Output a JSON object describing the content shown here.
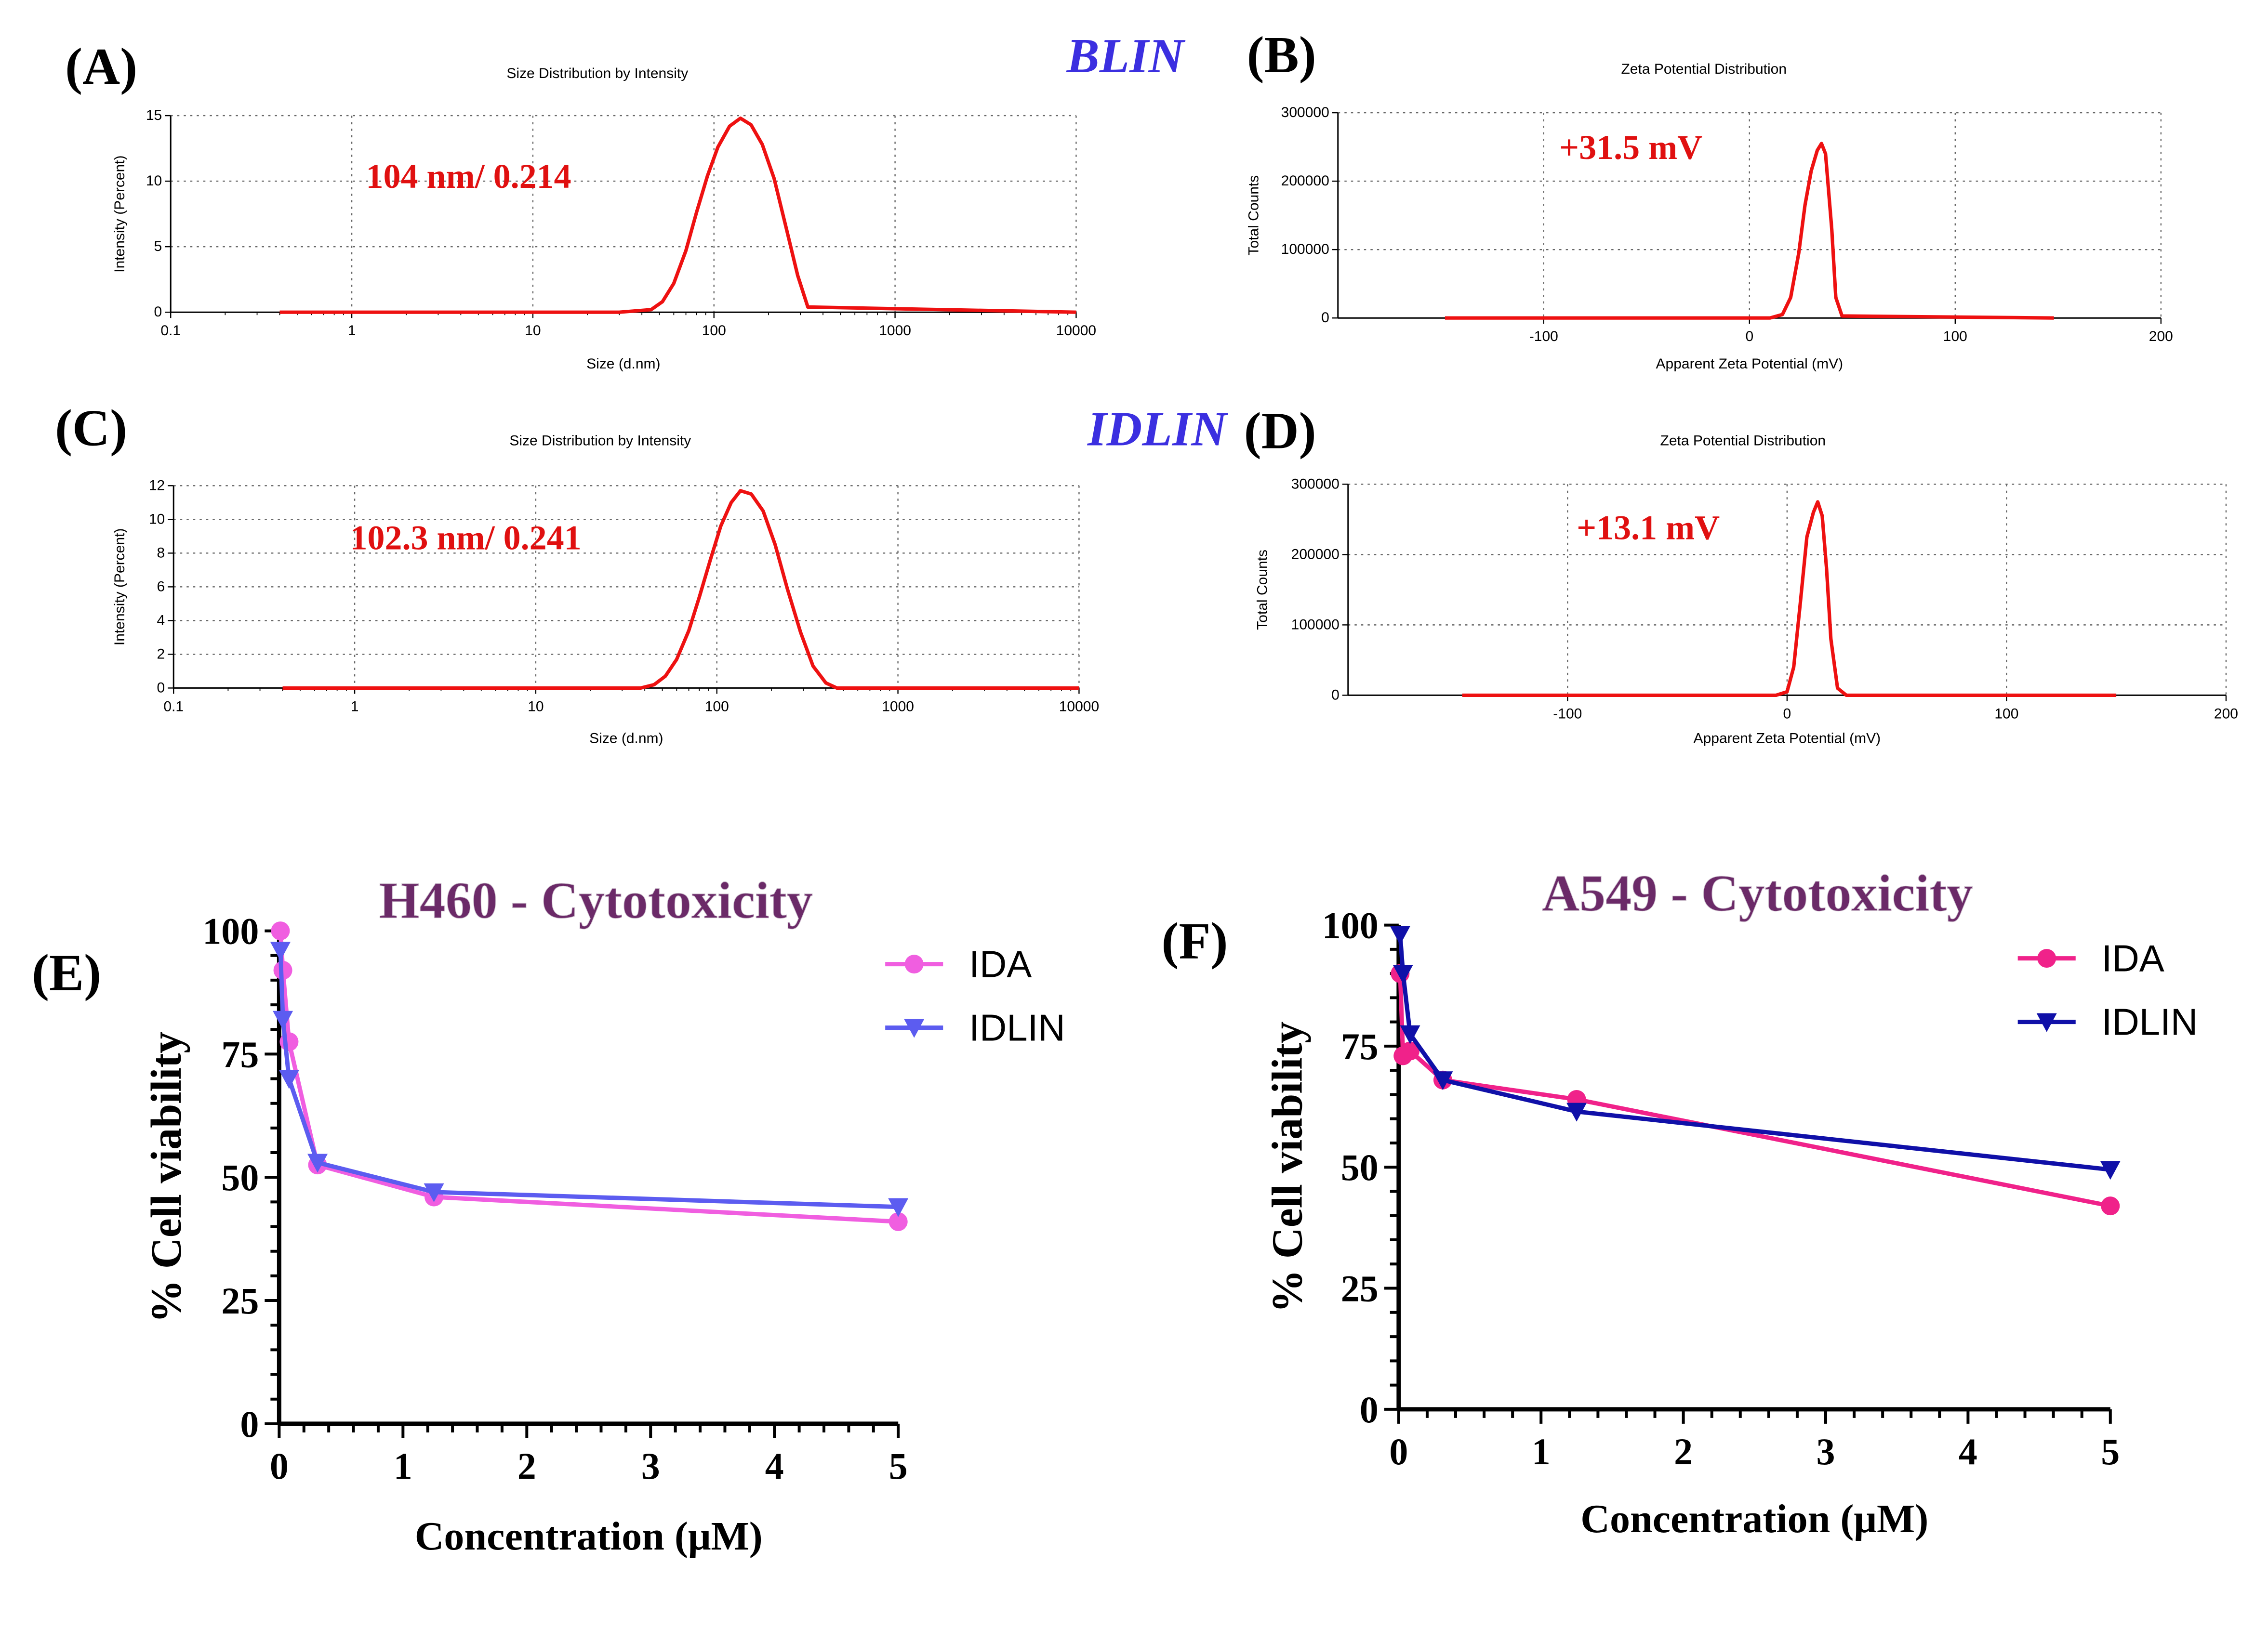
{
  "figure": {
    "group_labels": {
      "top": "BLIN",
      "middle": "IDLIN"
    },
    "colors": {
      "dls_line": "#ee1111",
      "annotation": "#e01010",
      "group_label": "#3b2fe0",
      "title_e_f": "#6b2a68"
    }
  },
  "chart_data": [
    {
      "panel": "(A)",
      "type": "line",
      "title": "Size Distribution by Intensity",
      "xlabel": "Size (d.nm)",
      "ylabel": "Intensity (Percent)",
      "x_scale": "log",
      "xlim": [
        0.1,
        10000
      ],
      "ylim": [
        0,
        15
      ],
      "x_ticks": [
        "0.1",
        "1",
        "10",
        "100",
        "1000",
        "10000"
      ],
      "y_ticks": [
        "0",
        "5",
        "10",
        "15"
      ],
      "annotation": "104 nm/ 0.214",
      "grid": true,
      "series": [
        {
          "x": [
            0.4,
            30,
            45,
            52,
            60,
            70,
            80,
            92,
            105,
            122,
            140,
            160,
            185,
            215,
            250,
            290,
            330,
            10000
          ],
          "values": [
            0,
            0,
            0.2,
            0.8,
            2.2,
            4.7,
            7.6,
            10.4,
            12.6,
            14.2,
            14.8,
            14.3,
            12.8,
            10.2,
            6.5,
            2.8,
            0.4,
            0
          ]
        }
      ]
    },
    {
      "panel": "(B)",
      "type": "line",
      "title": "Zeta Potential Distribution",
      "xlabel": "Apparent Zeta Potential (mV)",
      "ylabel": "Total Counts",
      "xlim": [
        -200,
        200
      ],
      "ylim": [
        0,
        300000
      ],
      "x_ticks": [
        "-100",
        "0",
        "100",
        "200"
      ],
      "y_ticks": [
        "0",
        "100000",
        "200000",
        "300000"
      ],
      "annotation": "+31.5 mV",
      "grid": true,
      "series": [
        {
          "x": [
            -148,
            10,
            16,
            20,
            24,
            27,
            30,
            33,
            35,
            37,
            40,
            42,
            45,
            148
          ],
          "values": [
            0,
            0,
            5000,
            30000,
            95000,
            165000,
            215000,
            245000,
            255000,
            240000,
            130000,
            30000,
            3000,
            0
          ]
        }
      ]
    },
    {
      "panel": "(C)",
      "type": "line",
      "title": "Size Distribution by Intensity",
      "xlabel": "Size (d.nm)",
      "ylabel": "Intensity (Percent)",
      "x_scale": "log",
      "xlim": [
        0.1,
        10000
      ],
      "ylim": [
        0,
        12
      ],
      "x_ticks": [
        "0.1",
        "1",
        "10",
        "100",
        "1000",
        "10000"
      ],
      "y_ticks": [
        "0",
        "2",
        "4",
        "6",
        "8",
        "10",
        "12"
      ],
      "annotation": "102.3 nm/ 0.241",
      "grid": true,
      "series": [
        {
          "x": [
            0.4,
            38,
            45,
            52,
            60,
            70,
            80,
            92,
            105,
            120,
            135,
            155,
            180,
            210,
            245,
            290,
            340,
            400,
            460,
            10000
          ],
          "values": [
            0,
            0,
            0.2,
            0.7,
            1.7,
            3.4,
            5.4,
            7.6,
            9.6,
            11.0,
            11.7,
            11.5,
            10.5,
            8.5,
            5.9,
            3.3,
            1.3,
            0.3,
            0,
            0
          ]
        }
      ]
    },
    {
      "panel": "(D)",
      "type": "line",
      "title": "Zeta Potential Distribution",
      "xlabel": "Apparent Zeta Potential (mV)",
      "ylabel": "Total Counts",
      "xlim": [
        -200,
        200
      ],
      "ylim": [
        0,
        300000
      ],
      "x_ticks": [
        "-100",
        "0",
        "100",
        "200"
      ],
      "y_ticks": [
        "0",
        "100000",
        "200000",
        "300000"
      ],
      "annotation": "+13.1 mV",
      "grid": true,
      "series": [
        {
          "x": [
            -148,
            -5,
            0,
            3,
            6,
            9,
            12,
            14,
            16,
            18,
            20,
            23,
            27,
            150
          ],
          "values": [
            0,
            0,
            5000,
            40000,
            130000,
            225000,
            260000,
            275000,
            255000,
            180000,
            80000,
            10000,
            0,
            0
          ]
        }
      ]
    },
    {
      "panel": "(E)",
      "type": "line",
      "title": "H460 - Cytotoxicity",
      "xlabel": "Concentration (μM)",
      "ylabel": "% Cell viability",
      "xlim": [
        0,
        5
      ],
      "ylim": [
        0,
        100
      ],
      "x_ticks": [
        "0",
        "1",
        "2",
        "3",
        "4",
        "5"
      ],
      "y_ticks": [
        "0",
        "25",
        "50",
        "75",
        "100"
      ],
      "legend_position": "top-right",
      "series": [
        {
          "name": "IDA",
          "color": "#f05ee0",
          "marker": "circle",
          "x": [
            0.01,
            0.03,
            0.08,
            0.31,
            1.25,
            5.0
          ],
          "values": [
            100,
            92,
            77.5,
            52.5,
            46,
            41
          ]
        },
        {
          "name": "IDLIN",
          "color": "#5c5cf0",
          "marker": "triangle-down",
          "x": [
            0.01,
            0.03,
            0.08,
            0.31,
            1.25,
            5.0
          ],
          "values": [
            96,
            82,
            70,
            53,
            47,
            44
          ]
        }
      ]
    },
    {
      "panel": "(F)",
      "type": "line",
      "title": "A549 - Cytotoxicity",
      "xlabel": "Concentration (μM)",
      "ylabel": "% Cell viability",
      "xlim": [
        0,
        5
      ],
      "ylim": [
        0,
        100
      ],
      "x_ticks": [
        "0",
        "1",
        "2",
        "3",
        "4",
        "5"
      ],
      "y_ticks": [
        "0",
        "25",
        "50",
        "75",
        "100"
      ],
      "legend_position": "top-right",
      "series": [
        {
          "name": "IDA",
          "color": "#f0228a",
          "marker": "circle",
          "x": [
            0.01,
            0.03,
            0.08,
            0.31,
            1.25,
            5.0
          ],
          "values": [
            90,
            73,
            74,
            68,
            64,
            42
          ]
        },
        {
          "name": "IDLIN",
          "color": "#1010a8",
          "marker": "triangle-down",
          "x": [
            0.01,
            0.03,
            0.08,
            0.31,
            1.25,
            5.0
          ],
          "values": [
            98,
            90,
            77.5,
            68,
            61.5,
            49.5
          ]
        }
      ]
    }
  ]
}
